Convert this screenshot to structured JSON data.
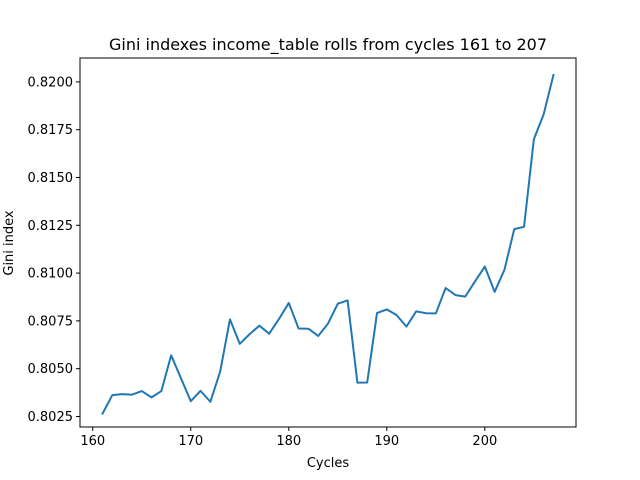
{
  "chart_data": {
    "type": "line",
    "title": "Gini indexes income_table rolls from cycles 161 to 207",
    "xlabel": "Cycles",
    "ylabel": "Gini index",
    "xlim": [
      158.7,
      209.3
    ],
    "ylim": [
      0.80195,
      0.82125
    ],
    "xticks": [
      160,
      170,
      180,
      190,
      200
    ],
    "xtick_labels": [
      "160",
      "170",
      "180",
      "190",
      "200"
    ],
    "yticks": [
      0.8025,
      0.805,
      0.8075,
      0.81,
      0.8125,
      0.815,
      0.8175,
      0.82
    ],
    "ytick_labels": [
      "0.8025",
      "0.8050",
      "0.8075",
      "0.8100",
      "0.8125",
      "0.8150",
      "0.8175",
      "0.8200"
    ],
    "grid": false,
    "line_color": "#1f77b4",
    "series": [
      {
        "name": "",
        "x": [
          161,
          162,
          163,
          164,
          165,
          166,
          167,
          168,
          169,
          170,
          171,
          172,
          173,
          174,
          175,
          176,
          177,
          178,
          179,
          180,
          181,
          182,
          183,
          184,
          185,
          186,
          187,
          188,
          189,
          190,
          191,
          192,
          193,
          194,
          195,
          196,
          197,
          198,
          199,
          200,
          201,
          202,
          203,
          204,
          205,
          206,
          207
        ],
        "y": [
          0.80265,
          0.80362,
          0.80367,
          0.80364,
          0.80383,
          0.8035,
          0.80383,
          0.8057,
          0.8045,
          0.8033,
          0.80384,
          0.80327,
          0.80485,
          0.80758,
          0.8063,
          0.8068,
          0.80725,
          0.80683,
          0.8076,
          0.80844,
          0.8071,
          0.80709,
          0.80671,
          0.80736,
          0.8084,
          0.80857,
          0.80427,
          0.80428,
          0.80791,
          0.8081,
          0.8078,
          0.8072,
          0.808,
          0.8079,
          0.80789,
          0.80922,
          0.80885,
          0.80877,
          0.80957,
          0.81034,
          0.80902,
          0.81017,
          0.8123,
          0.81242,
          0.817,
          0.8183,
          0.82036
        ]
      }
    ]
  }
}
